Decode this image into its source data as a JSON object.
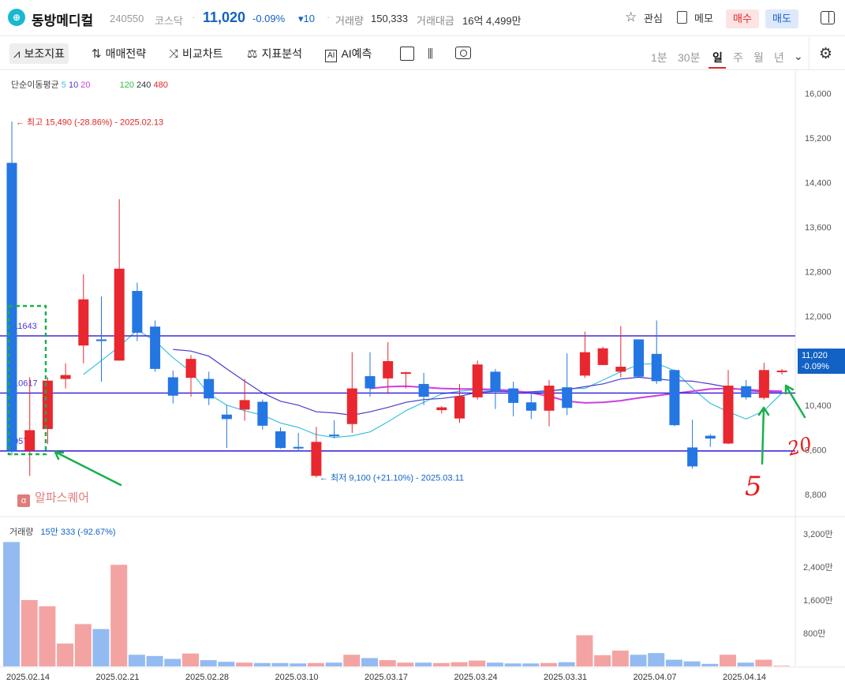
{
  "header": {
    "name": "동방메디컬",
    "code": "240550",
    "market": "코스닥",
    "price": "11,020",
    "change_pct": "-0.09%",
    "change": "▾10",
    "volume_label": "거래량",
    "volume": "150,333",
    "amount_label": "거래대금",
    "amount": "16억 4,499만",
    "watch_label": "관심",
    "memo_label": "메모",
    "buy_label": "매수",
    "sell_label": "매도"
  },
  "toolbar": {
    "indicators": "보조지표",
    "strategy": "매매전략",
    "compare": "비교차트",
    "analysis": "지표분석",
    "ai_badge": "AI",
    "ai": "AI예측",
    "periods": [
      "1분",
      "30분",
      "일",
      "주",
      "월",
      "년"
    ],
    "active_period": "일"
  },
  "legend": {
    "ma_title": "단순이동평균",
    "ma_periods": [
      "5",
      "10",
      "20",
      "120",
      "240",
      "480"
    ],
    "volume_title": "거래량",
    "volume_value": "15만 333 (-92.67%)"
  },
  "watermark": "알파스퀘어",
  "current_price_tag": {
    "price": "11,020",
    "pct": "-0.09%"
  },
  "colors": {
    "up": "#e8272f",
    "down": "#2476e3",
    "up_volume": "#f4a3a3",
    "down_volume": "#93bbf2",
    "ma5": "#3cc0e0",
    "ma10": "#4b3bcf",
    "ma20": "#cc3fe0",
    "hline": "#2f18d9"
  },
  "chart_data": {
    "type": "candlestick",
    "ylim": [
      8400,
      16400
    ],
    "y_ticks": [
      "16,000",
      "15,200",
      "14,400",
      "13,600",
      "12,800",
      "12,000",
      "11,200",
      "10,400",
      "9,600",
      "8,800"
    ],
    "x_labels": [
      "2025.02.14",
      "2025.02.21",
      "2025.02.28",
      "2025.03.10",
      "2025.03.17",
      "2025.03.24",
      "2025.03.31",
      "2025.04.07",
      "2025.04.14"
    ],
    "volume_ticks": [
      "3,200만",
      "2,400만",
      "1,600만",
      "800만"
    ],
    "candles": [
      {
        "o": 14750,
        "h": 15490,
        "l": 9500,
        "c": 9580,
        "v": 30000000
      },
      {
        "o": 9580,
        "h": 10900,
        "l": 9130,
        "c": 9950,
        "v": 16000000
      },
      {
        "o": 9970,
        "h": 10900,
        "l": 9700,
        "c": 10840,
        "v": 14500000
      },
      {
        "o": 10870,
        "h": 11150,
        "l": 10700,
        "c": 10940,
        "v": 5500000
      },
      {
        "o": 11470,
        "h": 12750,
        "l": 11150,
        "c": 12300,
        "v": 10200000
      },
      {
        "o": 11580,
        "h": 12350,
        "l": 10820,
        "c": 11550,
        "v": 9000000
      },
      {
        "o": 11200,
        "h": 14100,
        "l": 11200,
        "c": 12850,
        "v": 24500000
      },
      {
        "o": 12450,
        "h": 12600,
        "l": 11550,
        "c": 11700,
        "v": 2800000
      },
      {
        "o": 11810,
        "h": 11920,
        "l": 11000,
        "c": 11050,
        "v": 2500000
      },
      {
        "o": 10900,
        "h": 11020,
        "l": 10430,
        "c": 10570,
        "v": 1800000
      },
      {
        "o": 10890,
        "h": 11300,
        "l": 10550,
        "c": 11230,
        "v": 3100000
      },
      {
        "o": 10870,
        "h": 11000,
        "l": 10400,
        "c": 10520,
        "v": 1500000
      },
      {
        "o": 10230,
        "h": 10400,
        "l": 9630,
        "c": 10150,
        "v": 1100000
      },
      {
        "o": 10320,
        "h": 10870,
        "l": 10120,
        "c": 10490,
        "v": 900000
      },
      {
        "o": 10460,
        "h": 10500,
        "l": 9960,
        "c": 10030,
        "v": 800000
      },
      {
        "o": 9930,
        "h": 10000,
        "l": 9620,
        "c": 9630,
        "v": 800000
      },
      {
        "o": 9650,
        "h": 9900,
        "l": 9570,
        "c": 9640,
        "v": 700000
      },
      {
        "o": 9130,
        "h": 10010,
        "l": 9100,
        "c": 9740,
        "v": 800000
      },
      {
        "o": 9870,
        "h": 10130,
        "l": 9800,
        "c": 9850,
        "v": 900000
      },
      {
        "o": 10060,
        "h": 11350,
        "l": 9900,
        "c": 10700,
        "v": 2800000
      },
      {
        "o": 10920,
        "h": 11350,
        "l": 10550,
        "c": 10700,
        "v": 2000000
      },
      {
        "o": 10880,
        "h": 11530,
        "l": 10620,
        "c": 11190,
        "v": 1500000
      },
      {
        "o": 10980,
        "h": 11000,
        "l": 10700,
        "c": 10990,
        "v": 900000
      },
      {
        "o": 10780,
        "h": 10980,
        "l": 10400,
        "c": 10550,
        "v": 900000
      },
      {
        "o": 10310,
        "h": 10380,
        "l": 10250,
        "c": 10360,
        "v": 800000
      },
      {
        "o": 10160,
        "h": 10780,
        "l": 10080,
        "c": 10560,
        "v": 1000000
      },
      {
        "o": 10540,
        "h": 11200,
        "l": 10500,
        "c": 11130,
        "v": 1400000
      },
      {
        "o": 11000,
        "h": 11050,
        "l": 10330,
        "c": 10650,
        "v": 900000
      },
      {
        "o": 10700,
        "h": 10820,
        "l": 10200,
        "c": 10440,
        "v": 700000
      },
      {
        "o": 10450,
        "h": 10640,
        "l": 10150,
        "c": 10300,
        "v": 700000
      },
      {
        "o": 10300,
        "h": 10850,
        "l": 10020,
        "c": 10750,
        "v": 800000
      },
      {
        "o": 10720,
        "h": 11330,
        "l": 10220,
        "c": 10350,
        "v": 1000000
      },
      {
        "o": 10930,
        "h": 11720,
        "l": 10890,
        "c": 11350,
        "v": 7500000
      },
      {
        "o": 11120,
        "h": 11450,
        "l": 11120,
        "c": 11420,
        "v": 2700000
      },
      {
        "o": 11000,
        "h": 11820,
        "l": 10900,
        "c": 11090,
        "v": 3800000
      },
      {
        "o": 11580,
        "h": 11580,
        "l": 10910,
        "c": 10910,
        "v": 2800000
      },
      {
        "o": 11320,
        "h": 11920,
        "l": 10780,
        "c": 10830,
        "v": 3200000
      },
      {
        "o": 11030,
        "h": 11040,
        "l": 10020,
        "c": 10040,
        "v": 1600000
      },
      {
        "o": 9640,
        "h": 10140,
        "l": 9260,
        "c": 9300,
        "v": 1200000
      },
      {
        "o": 9850,
        "h": 9880,
        "l": 9650,
        "c": 9800,
        "v": 600000
      },
      {
        "o": 9710,
        "h": 11030,
        "l": 9700,
        "c": 10750,
        "v": 2800000
      },
      {
        "o": 10740,
        "h": 10850,
        "l": 10500,
        "c": 10540,
        "v": 900000
      },
      {
        "o": 10530,
        "h": 11160,
        "l": 10500,
        "c": 11030,
        "v": 1600000
      },
      {
        "o": 11020,
        "h": 11050,
        "l": 10950,
        "c": 11020,
        "v": 150333
      }
    ],
    "ma5": [
      [
        4,
        10950
      ],
      [
        6,
        11450
      ],
      [
        7,
        11750
      ],
      [
        8,
        11550
      ],
      [
        9,
        11250
      ],
      [
        10,
        11000
      ],
      [
        11,
        10600
      ],
      [
        12,
        10400
      ],
      [
        13,
        10300
      ],
      [
        14,
        10220
      ],
      [
        15,
        10080
      ],
      [
        16,
        10000
      ],
      [
        17,
        9870
      ],
      [
        18,
        9820
      ],
      [
        19,
        9850
      ],
      [
        20,
        9920
      ],
      [
        21,
        10100
      ],
      [
        22,
        10300
      ],
      [
        23,
        10450
      ],
      [
        24,
        10600
      ],
      [
        25,
        10650
      ],
      [
        26,
        10680
      ],
      [
        27,
        10650
      ],
      [
        28,
        10650
      ],
      [
        29,
        10620
      ],
      [
        30,
        10650
      ],
      [
        31,
        10700
      ],
      [
        32,
        10700
      ],
      [
        33,
        10850
      ],
      [
        34,
        11000
      ],
      [
        35,
        11130
      ],
      [
        36,
        11150
      ],
      [
        37,
        11020
      ],
      [
        38,
        10700
      ],
      [
        39,
        10430
      ],
      [
        40,
        10280
      ],
      [
        41,
        10150
      ],
      [
        42,
        10300
      ],
      [
        43,
        10620
      ]
    ],
    "ma10": [
      [
        9,
        11400
      ],
      [
        10,
        11370
      ],
      [
        11,
        11280
      ],
      [
        12,
        11050
      ],
      [
        13,
        10830
      ],
      [
        14,
        10620
      ],
      [
        15,
        10470
      ],
      [
        16,
        10400
      ],
      [
        17,
        10280
      ],
      [
        18,
        10260
      ],
      [
        19,
        10220
      ],
      [
        20,
        10280
      ],
      [
        21,
        10360
      ],
      [
        22,
        10450
      ],
      [
        23,
        10500
      ],
      [
        24,
        10520
      ],
      [
        25,
        10560
      ],
      [
        26,
        10630
      ],
      [
        27,
        10650
      ],
      [
        28,
        10640
      ],
      [
        29,
        10640
      ],
      [
        30,
        10660
      ],
      [
        31,
        10680
      ],
      [
        32,
        10730
      ],
      [
        33,
        10780
      ],
      [
        34,
        10870
      ],
      [
        35,
        10900
      ],
      [
        36,
        10870
      ],
      [
        37,
        10840
      ],
      [
        38,
        10830
      ],
      [
        39,
        10780
      ],
      [
        40,
        10720
      ],
      [
        41,
        10660
      ],
      [
        42,
        10640
      ],
      [
        43,
        10640
      ]
    ],
    "ma20": [
      [
        20,
        10700
      ],
      [
        21,
        10730
      ],
      [
        22,
        10740
      ],
      [
        23,
        10720
      ],
      [
        24,
        10700
      ],
      [
        25,
        10690
      ],
      [
        26,
        10690
      ],
      [
        27,
        10680
      ],
      [
        28,
        10660
      ],
      [
        29,
        10620
      ],
      [
        30,
        10560
      ],
      [
        31,
        10470
      ],
      [
        32,
        10440
      ],
      [
        33,
        10450
      ],
      [
        34,
        10480
      ],
      [
        35,
        10530
      ],
      [
        36,
        10570
      ],
      [
        37,
        10610
      ],
      [
        38,
        10650
      ],
      [
        39,
        10690
      ],
      [
        40,
        10700
      ],
      [
        41,
        10680
      ],
      [
        42,
        10660
      ],
      [
        43,
        10650
      ]
    ],
    "hlines": [
      {
        "value": 11643,
        "label": "11643"
      },
      {
        "value": 10617,
        "label": "10617"
      },
      {
        "value": 9577,
        "label": "9577"
      }
    ],
    "annotations": {
      "high": "최고 15,490 (-28.86%) - 2025.02.13",
      "low": "최저 9,100 (+21.10%) - 2025.03.11",
      "handwritten": [
        "5",
        "20"
      ]
    }
  }
}
